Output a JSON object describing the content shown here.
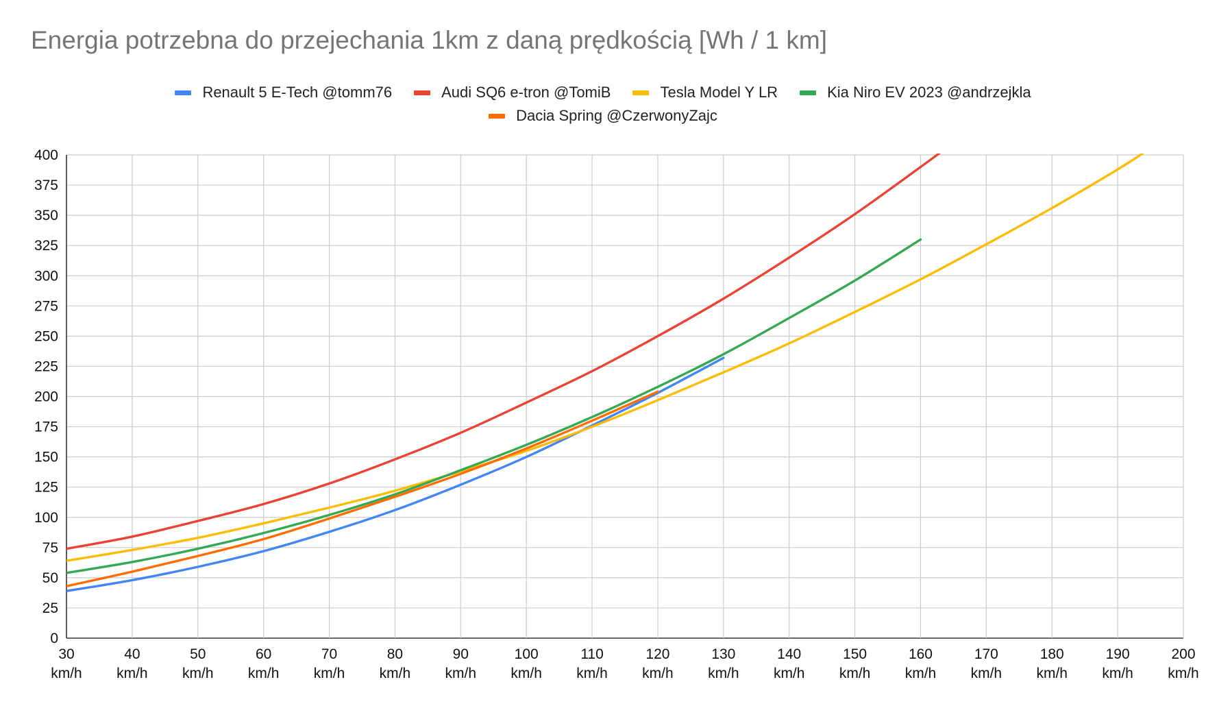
{
  "chart_data": {
    "type": "line",
    "title": "Energia potrzebna do przejechania 1km z daną prędkością [Wh / 1 km]",
    "xlabel": "",
    "ylabel": "",
    "xlim": [
      30,
      200
    ],
    "ylim": [
      0,
      400
    ],
    "x_ticks": [
      30,
      40,
      50,
      60,
      70,
      80,
      90,
      100,
      110,
      120,
      130,
      140,
      150,
      160,
      170,
      180,
      190,
      200
    ],
    "x_tick_unit": "km/h",
    "y_ticks": [
      0,
      25,
      50,
      75,
      100,
      125,
      150,
      175,
      200,
      225,
      250,
      275,
      300,
      325,
      350,
      375,
      400
    ],
    "grid": true,
    "legend_position": "top",
    "series": [
      {
        "name": "Renault 5 E-Tech @tomm76",
        "color": "#4285F4",
        "x": [
          30,
          40,
          50,
          60,
          70,
          80,
          90,
          100,
          110,
          120,
          130
        ],
        "y": [
          39,
          48,
          59,
          72,
          88,
          106,
          127,
          150,
          176,
          203,
          232
        ]
      },
      {
        "name": "Audi SQ6 e-tron @TomiB",
        "color": "#EA4335",
        "x": [
          30,
          40,
          50,
          60,
          70,
          80,
          90,
          100,
          110,
          120,
          130,
          140,
          150,
          160,
          163
        ],
        "y": [
          74,
          84,
          97,
          111,
          128,
          148,
          170,
          195,
          221,
          250,
          281,
          315,
          351,
          390,
          402
        ]
      },
      {
        "name": "Tesla Model Y LR",
        "color": "#FBBC04",
        "x": [
          30,
          40,
          50,
          60,
          70,
          80,
          90,
          100,
          110,
          120,
          130,
          140,
          150,
          160,
          170,
          180,
          190,
          194
        ],
        "y": [
          64,
          73,
          83,
          95,
          108,
          122,
          138,
          155,
          175,
          197,
          220,
          244,
          270,
          297,
          326,
          356,
          388,
          402
        ]
      },
      {
        "name": "Kia Niro EV 2023 @andrzejkla",
        "color": "#34A853",
        "x": [
          30,
          40,
          50,
          60,
          70,
          80,
          90,
          100,
          110,
          120,
          130,
          140,
          150,
          160
        ],
        "y": [
          54,
          63,
          74,
          87,
          102,
          119,
          139,
          160,
          183,
          208,
          235,
          265,
          296,
          330
        ]
      },
      {
        "name": "Dacia Spring @CzerwonyZajc",
        "color": "#FF6D01",
        "x": [
          30,
          40,
          50,
          60,
          70,
          80,
          90,
          100,
          110,
          120
        ],
        "y": [
          43,
          55,
          68,
          82,
          99,
          117,
          136,
          157,
          180,
          204
        ]
      }
    ]
  }
}
